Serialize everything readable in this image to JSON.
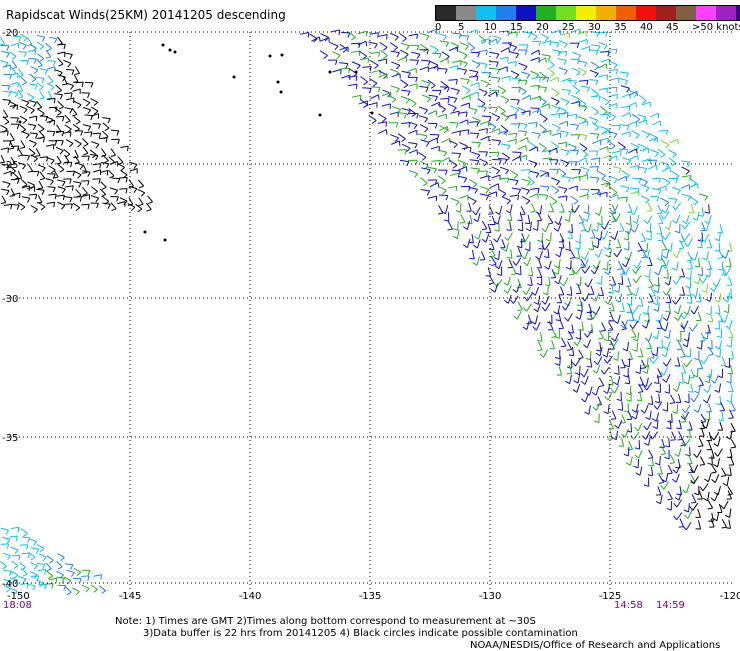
{
  "title": "Rapidscat Winds(25KM) 20141205 descending",
  "legend": {
    "colors": [
      "#2a2a2a",
      "#8a8a8a",
      "#10c0f0",
      "#2080f0",
      "#1010c0",
      "#20b020",
      "#70e020",
      "#f0f000",
      "#f0b000",
      "#f06000",
      "#f01010",
      "#a02020",
      "#806040",
      "#ff40ff",
      "#a020c0",
      "#400080"
    ],
    "labels": [
      "0",
      "5",
      "10",
      "15",
      "20",
      "25",
      "30",
      "35",
      "40",
      "45",
      ">50 knots"
    ]
  },
  "axes": {
    "x_labels": [
      "-150",
      "-145",
      "-140",
      "-135",
      "-130",
      "-125",
      "-120"
    ],
    "y_labels": [
      "-20",
      "-25",
      "-30",
      "-35",
      "-40"
    ]
  },
  "times": {
    "left": "18:08",
    "right1": "14:58",
    "right2": "14:59"
  },
  "notes": {
    "line1": "Note: 1) Times are GMT 2)Times along bottom correspond to measurement at ~30S",
    "line2": "3)Data buffer is 22 hrs from 20141205 4) Black circles indicate possible contamination",
    "line3": "NOAA/NESDIS/Office of Research and Applications"
  }
}
